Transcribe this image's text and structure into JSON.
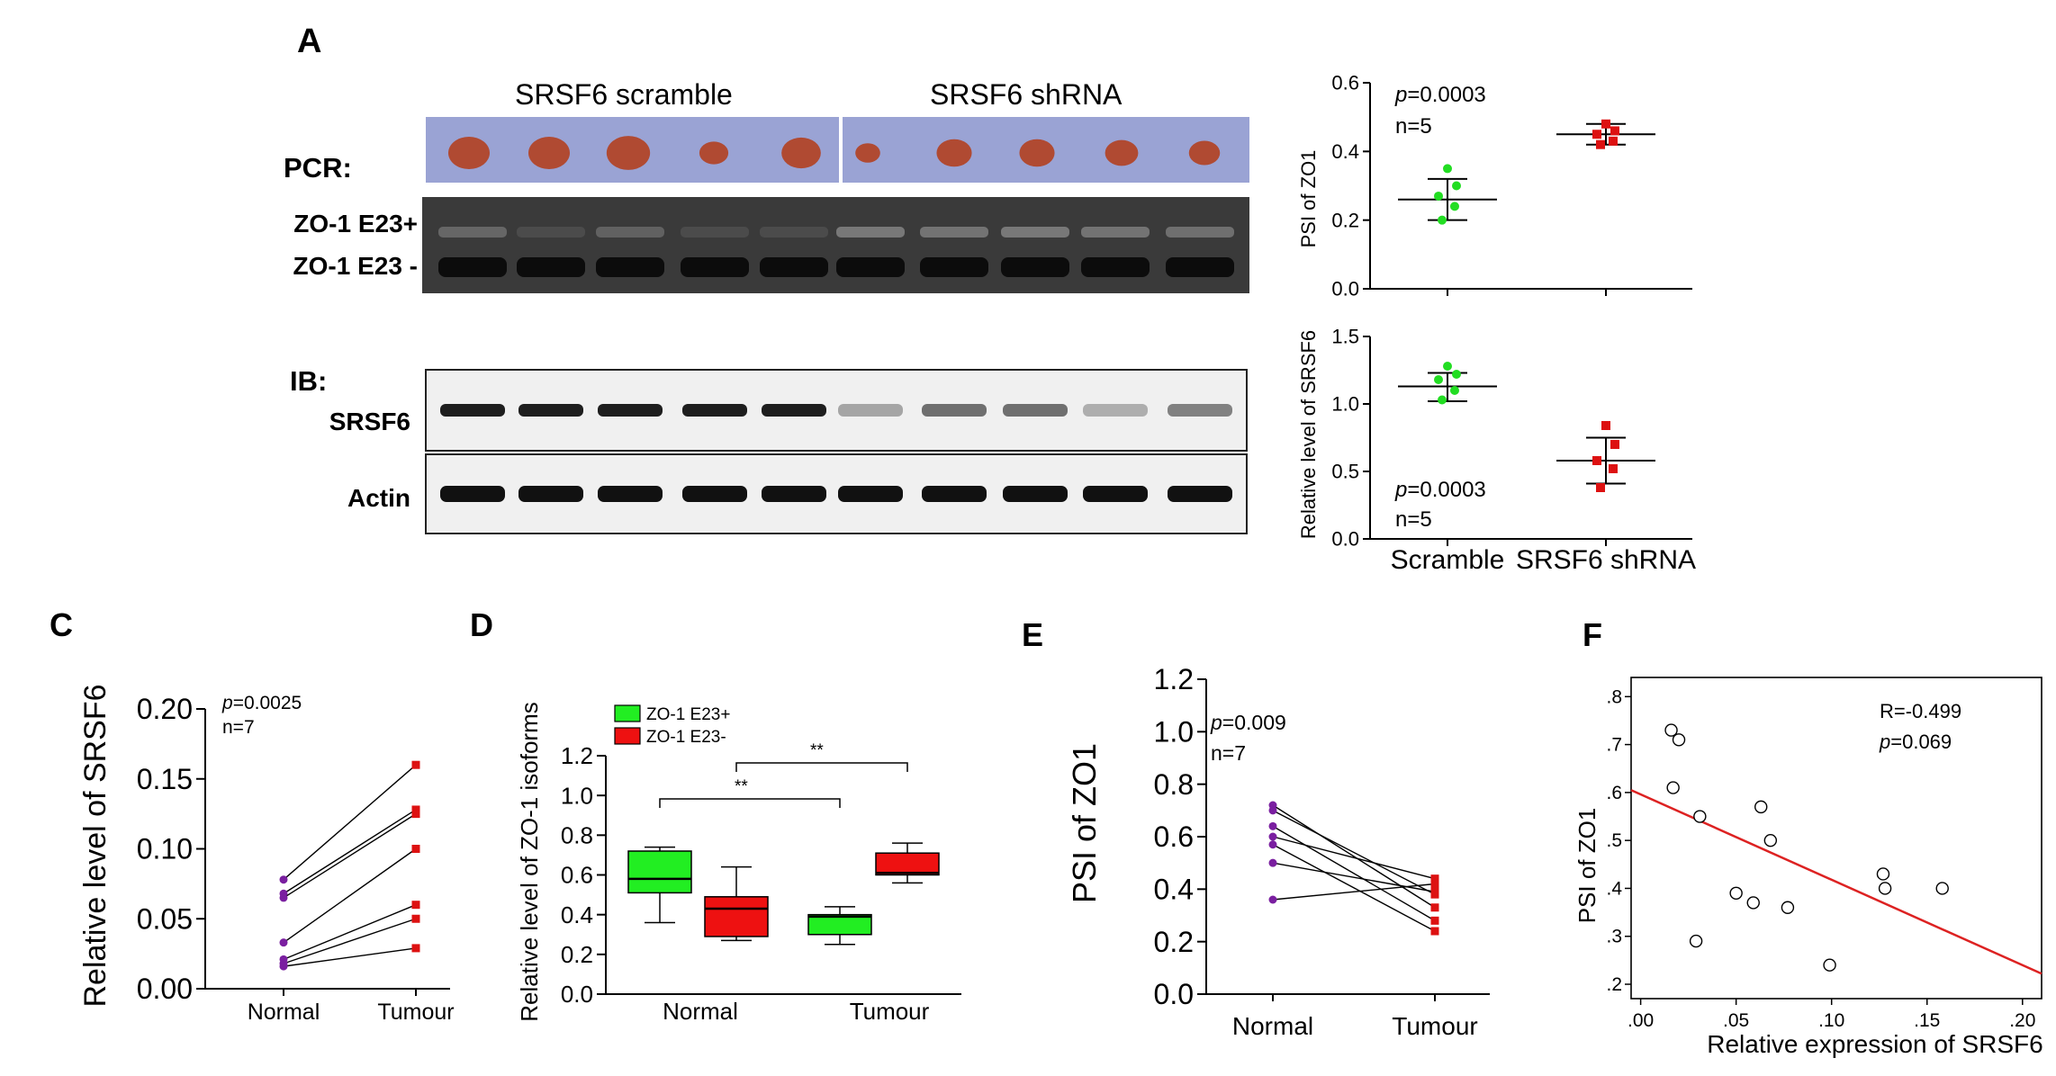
{
  "panels": {
    "A": {
      "label": "A",
      "photo": {
        "group_labels": [
          "SRSF6 scramble",
          "SRSF6 shRNA"
        ],
        "tumor_sizes": [
          1.0,
          1.0,
          1.05,
          0.7,
          0.95,
          0.6,
          0.85,
          0.85,
          0.8,
          0.75
        ],
        "bg_color": "#9aa3d4",
        "tumor_color": "#b04a32"
      },
      "pcr": {
        "section_label": "PCR:",
        "band_labels": [
          "ZO-1 E23+",
          "ZO-1 E23 -"
        ],
        "upper_band_intensity": [
          0.35,
          0.05,
          0.3,
          0.05,
          0.05,
          0.55,
          0.5,
          0.55,
          0.5,
          0.45
        ],
        "lower_band_intensity": [
          1,
          1,
          1,
          1,
          1,
          1,
          1,
          1,
          1,
          1
        ]
      },
      "ib": {
        "section_label": "IB:",
        "rows": [
          {
            "label": "SRSF6",
            "intensity": [
              1.0,
              1.0,
              1.0,
              1.0,
              1.0,
              0.25,
              0.55,
              0.55,
              0.2,
              0.45
            ]
          },
          {
            "label": "Actin",
            "intensity": [
              1,
              1,
              1,
              1,
              1,
              1,
              1,
              1,
              1,
              1
            ]
          }
        ]
      }
    },
    "C": {
      "label": "C",
      "annotation": {
        "p_prefix": "p",
        "p_value": "=0.0025",
        "n": "n=7"
      }
    },
    "D": {
      "label": "D",
      "annotation": {
        "sig1": "**",
        "sig2": "**"
      }
    },
    "E": {
      "label": "E",
      "annotation": {
        "p_prefix": "p",
        "p_value": "=0.009",
        "n": "n=7"
      }
    },
    "F": {
      "label": "F",
      "annotation": {
        "r": "R=-0.499",
        "p_prefix": "p",
        "p_value": "=0.069"
      }
    }
  },
  "annotations": {
    "A_psi": {
      "p_prefix": "p",
      "p_value": "=0.0003",
      "n": "n=5"
    },
    "A_rel": {
      "p_prefix": "p",
      "p_value": "=0.0003",
      "n": "n=5"
    }
  },
  "chart_data": [
    {
      "id": "A_psi",
      "type": "scatter",
      "ylabel": "PSI of ZO1",
      "categories": [
        "Scramble",
        "SRSF6 shRNA"
      ],
      "ylim": [
        0,
        0.6
      ],
      "yticks": [
        "0.0",
        "0.2",
        "0.4",
        "0.6"
      ],
      "series": [
        {
          "values": [
            0.35,
            0.3,
            0.27,
            0.24,
            0.2
          ],
          "mean": 0.26,
          "sd_low": 0.2,
          "sd_high": 0.32,
          "color": "#22dd22",
          "marker": "circle"
        },
        {
          "values": [
            0.48,
            0.46,
            0.45,
            0.43,
            0.42
          ],
          "mean": 0.45,
          "sd_low": 0.42,
          "sd_high": 0.48,
          "color": "#dd1111",
          "marker": "square"
        }
      ]
    },
    {
      "id": "A_rel",
      "type": "scatter",
      "ylabel": "Relative level of SRSF6",
      "categories": [
        "Scramble",
        "SRSF6 shRNA"
      ],
      "ylim": [
        0,
        1.5
      ],
      "yticks": [
        "0.0",
        "0.5",
        "1.0",
        "1.5"
      ],
      "series": [
        {
          "values": [
            1.28,
            1.22,
            1.18,
            1.1,
            1.03
          ],
          "mean": 1.13,
          "sd_low": 1.02,
          "sd_high": 1.23,
          "color": "#22dd22",
          "marker": "circle"
        },
        {
          "values": [
            0.84,
            0.7,
            0.58,
            0.52,
            0.38
          ],
          "mean": 0.58,
          "sd_low": 0.41,
          "sd_high": 0.75,
          "color": "#dd1111",
          "marker": "square"
        }
      ]
    },
    {
      "id": "C",
      "type": "line",
      "ylabel": "Relative level of SRSF6",
      "categories": [
        "Normal",
        "Tumour"
      ],
      "ylim": [
        0,
        0.2
      ],
      "yticks": [
        "0.00",
        "0.05",
        "0.10",
        "0.15",
        "0.20"
      ],
      "normal_color": "#7a1fa0",
      "tumour_color": "#dd1111",
      "pairs": [
        [
          0.078,
          0.16
        ],
        [
          0.068,
          0.128
        ],
        [
          0.065,
          0.125
        ],
        [
          0.033,
          0.1
        ],
        [
          0.021,
          0.06
        ],
        [
          0.018,
          0.05
        ],
        [
          0.016,
          0.029
        ]
      ]
    },
    {
      "id": "D",
      "type": "box",
      "ylabel": "Relative level of ZO-1 isoforms",
      "categories": [
        "Normal",
        "Tumour"
      ],
      "ylim": [
        0,
        1.2
      ],
      "yticks": [
        "0.0",
        "0.2",
        "0.4",
        "0.6",
        "0.8",
        "1.0",
        "1.2"
      ],
      "legend": [
        {
          "name": "ZO-1 E23+",
          "color": "#22ee22"
        },
        {
          "name": "ZO-1 E23-",
          "color": "#ee1111"
        }
      ],
      "boxes": [
        {
          "category": "Normal",
          "series": 0,
          "min": 0.36,
          "q1": 0.51,
          "median": 0.58,
          "q3": 0.72,
          "max": 0.74
        },
        {
          "category": "Normal",
          "series": 1,
          "min": 0.27,
          "q1": 0.29,
          "median": 0.43,
          "q3": 0.49,
          "max": 0.64
        },
        {
          "category": "Tumour",
          "series": 0,
          "min": 0.25,
          "q1": 0.3,
          "median": 0.39,
          "q3": 0.4,
          "max": 0.44
        },
        {
          "category": "Tumour",
          "series": 1,
          "min": 0.56,
          "q1": 0.6,
          "median": 0.61,
          "q3": 0.71,
          "max": 0.76
        }
      ]
    },
    {
      "id": "E",
      "type": "line",
      "ylabel": "PSI of ZO1",
      "categories": [
        "Normal",
        "Tumour"
      ],
      "ylim": [
        0,
        1.2
      ],
      "yticks": [
        "0.0",
        "0.2",
        "0.4",
        "0.6",
        "0.8",
        "1.0",
        "1.2"
      ],
      "normal_color": "#7a1fa0",
      "tumour_color": "#dd1111",
      "pairs": [
        [
          0.72,
          0.33
        ],
        [
          0.7,
          0.38
        ],
        [
          0.64,
          0.28
        ],
        [
          0.6,
          0.44
        ],
        [
          0.57,
          0.24
        ],
        [
          0.5,
          0.39
        ],
        [
          0.36,
          0.42
        ]
      ]
    },
    {
      "id": "F",
      "type": "scatter",
      "xlabel": "Relative expression of SRSF6",
      "ylabel": "PSI of ZO1",
      "xlim": [
        -0.005,
        0.21
      ],
      "ylim": [
        0.17,
        0.84
      ],
      "xticks": [
        ".00",
        ".05",
        ".10",
        ".15",
        ".20"
      ],
      "yticks": [
        ".2",
        ".3",
        ".4",
        ".5",
        ".6",
        ".7",
        ".8"
      ],
      "points": [
        [
          0.016,
          0.73
        ],
        [
          0.02,
          0.71
        ],
        [
          0.017,
          0.61
        ],
        [
          0.031,
          0.55
        ],
        [
          0.063,
          0.57
        ],
        [
          0.068,
          0.5
        ],
        [
          0.05,
          0.39
        ],
        [
          0.059,
          0.37
        ],
        [
          0.077,
          0.36
        ],
        [
          0.029,
          0.29
        ],
        [
          0.099,
          0.24
        ],
        [
          0.127,
          0.43
        ],
        [
          0.128,
          0.4
        ],
        [
          0.158,
          0.4
        ]
      ],
      "fit": {
        "x": [
          -0.005,
          0.21
        ],
        "y": [
          0.605,
          0.222
        ],
        "color": "#dd2222"
      }
    }
  ]
}
